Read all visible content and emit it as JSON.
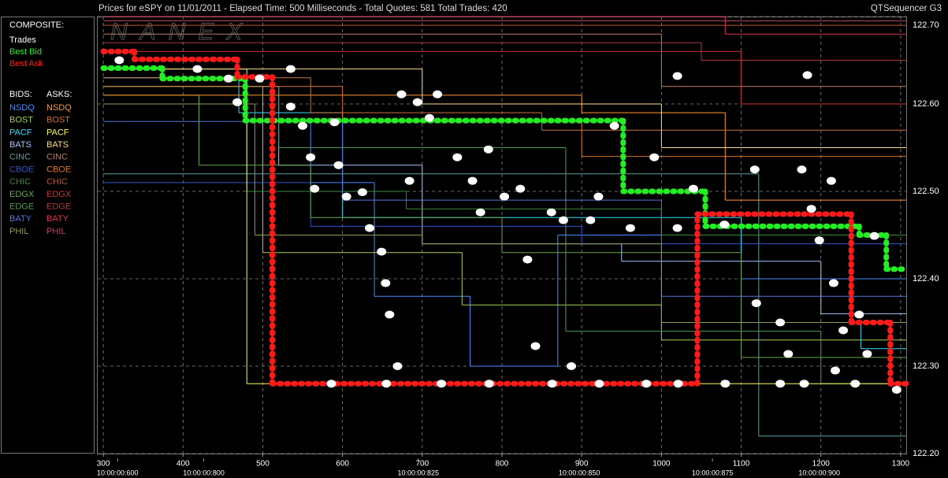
{
  "chart_data": {
    "type": "line",
    "title": "Prices for  eSPY  on  11/01/2011  -  Elapsed Time: 500 Milliseconds  -  Total Quotes: 581  Total Trades: 420",
    "source_label": "QTSequencer G3",
    "watermark": "NANEX",
    "composite_label": "COMPOSITE:",
    "bids_label": "BIDS:",
    "asks_label": "ASKS:",
    "trades": {
      "name": "Trades",
      "color": "#ffffff",
      "x": [
        320,
        418,
        457,
        468,
        496,
        535,
        535,
        550,
        560,
        565,
        590,
        595,
        605,
        625,
        634,
        649,
        654,
        659,
        669,
        674,
        694,
        684,
        709,
        719,
        744,
        763,
        773,
        783,
        803,
        823,
        832,
        842,
        862,
        877,
        887,
        911,
        921,
        941,
        961,
        991,
        1020,
        1020,
        1040,
        1079,
        1117,
        1119,
        1149,
        1159,
        1176,
        1183,
        1188,
        1198,
        1213,
        1216,
        1218,
        1228,
        1248,
        1258,
        1267,
        1295,
        586,
        655,
        724,
        784,
        863,
        922,
        981,
        1021,
        1080,
        1149,
        1179,
        1243
      ],
      "values": [
        122.65,
        122.64,
        122.629,
        122.602,
        122.629,
        122.64,
        122.597,
        122.575,
        122.539,
        122.503,
        122.579,
        122.53,
        122.494,
        122.499,
        122.458,
        122.431,
        122.395,
        122.359,
        122.3,
        122.611,
        122.602,
        122.512,
        122.584,
        122.611,
        122.539,
        122.512,
        122.476,
        122.548,
        122.494,
        122.503,
        122.422,
        122.323,
        122.476,
        122.467,
        122.3,
        122.467,
        122.494,
        122.575,
        122.458,
        122.539,
        122.632,
        122.458,
        122.503,
        122.462,
        122.525,
        122.372,
        122.35,
        122.314,
        122.525,
        122.633,
        122.48,
        122.444,
        122.512,
        122.395,
        122.295,
        122.341,
        122.359,
        122.314,
        122.449,
        122.273,
        122.28,
        122.28,
        122.28,
        122.28,
        122.28,
        122.28,
        122.28,
        122.28,
        122.28,
        122.28,
        122.28,
        122.28
      ]
    },
    "best_bid": {
      "name": "Best Bid",
      "color": "#22ee22",
      "x": [
        300,
        374,
        478,
        952,
        1055,
        1248,
        1282
      ],
      "values": [
        122.641,
        122.629,
        122.581,
        122.5,
        122.46,
        122.45,
        122.411
      ]
    },
    "best_ask": {
      "name": "Best Ask",
      "color": "#ff1a1a",
      "x": [
        300,
        339,
        468,
        512,
        1045,
        1238,
        1287
      ],
      "values": [
        122.66,
        122.651,
        122.631,
        122.28,
        122.474,
        122.35,
        122.28
      ]
    },
    "bids": [
      {
        "name": "NSDQ",
        "color": "#4a8cff",
        "x": [
          300,
          480,
          560,
          640,
          760,
          870,
          1100
        ],
        "values": [
          122.63,
          122.58,
          122.51,
          122.38,
          122.3,
          122.45,
          122.4
        ]
      },
      {
        "name": "BOST",
        "color": "#a8d050",
        "x": [
          300,
          500,
          750,
          1000
        ],
        "values": [
          122.62,
          122.43,
          122.37,
          122.33
        ]
      },
      {
        "name": "PACF",
        "color": "#33e0ff",
        "x": [
          300,
          470,
          600,
          1100,
          1250
        ],
        "values": [
          122.63,
          122.59,
          122.47,
          122.35,
          122.32
        ]
      },
      {
        "name": "BATS",
        "color": "#a8c8ff",
        "x": [
          300,
          520,
          700,
          950,
          1200
        ],
        "values": [
          122.62,
          122.53,
          122.44,
          122.42,
          122.36
        ]
      },
      {
        "name": "CINC",
        "color": "#5f9ea0",
        "x": [
          300,
          1122
        ],
        "values": [
          122.52,
          122.22
        ]
      },
      {
        "name": "CBOE",
        "color": "#3355cc",
        "x": [
          300,
          560,
          900
        ],
        "values": [
          122.51,
          122.46,
          122.44
        ]
      },
      {
        "name": "CHIC",
        "color": "#3c8c3c",
        "x": [
          300,
          480,
          680,
          1000
        ],
        "values": [
          122.6,
          122.5,
          122.48,
          122.45
        ]
      },
      {
        "name": "EDGX",
        "color": "#6aa84f",
        "x": [
          300,
          420,
          560,
          800,
          1100
        ],
        "values": [
          122.61,
          122.53,
          122.47,
          122.43,
          122.31
        ]
      },
      {
        "name": "EDGE",
        "color": "#4f9a4f",
        "x": [
          300,
          520,
          880,
          1200
        ],
        "values": [
          122.62,
          122.55,
          122.34,
          122.28
        ]
      },
      {
        "name": "BATY",
        "color": "#5577dd",
        "x": [
          300,
          600,
          1000
        ],
        "values": [
          122.58,
          122.49,
          122.38
        ]
      },
      {
        "name": "PHIL",
        "color": "#8aa050",
        "x": [
          300,
          490,
          700,
          1000
        ],
        "values": [
          122.6,
          122.45,
          122.44,
          122.35
        ]
      }
    ],
    "asks": [
      {
        "name": "NSDQ",
        "color": "#ff9933",
        "x": [
          300,
          640,
          900,
          1080
        ],
        "values": [
          122.61,
          122.61,
          122.59,
          122.49
        ]
      },
      {
        "name": "BOST",
        "color": "#d0703a",
        "x": [
          300,
          560,
          850
        ],
        "values": [
          122.63,
          122.59,
          122.57
        ]
      },
      {
        "name": "PACF",
        "color": "#ffff55",
        "x": [
          300,
          480
        ],
        "values": [
          122.64,
          122.28
        ]
      },
      {
        "name": "BATS",
        "color": "#ffdd88",
        "x": [
          300,
          700,
          1000
        ],
        "values": [
          122.64,
          122.6,
          122.55
        ]
      },
      {
        "name": "CINC",
        "color": "#b88060",
        "x": [
          300,
          1000
        ],
        "values": [
          122.68,
          122.62
        ]
      },
      {
        "name": "CBOE",
        "color": "#dd7722",
        "x": [
          300,
          600,
          900
        ],
        "values": [
          122.62,
          122.58,
          122.54
        ]
      },
      {
        "name": "CHIC",
        "color": "#bb5533",
        "x": [
          300
        ],
        "values": [
          122.69
        ]
      },
      {
        "name": "EDGX",
        "color": "#cc3333",
        "x": [
          300,
          900,
          1100
        ],
        "values": [
          122.66,
          122.66,
          122.6
        ]
      },
      {
        "name": "EDGE",
        "color": "#aa3a3a",
        "x": [
          300,
          1050
        ],
        "values": [
          122.67,
          122.65
        ]
      },
      {
        "name": "BATY",
        "color": "#dd3355",
        "x": [
          300,
          1080
        ],
        "values": [
          122.7,
          122.68
        ]
      },
      {
        "name": "PHIL",
        "color": "#bb4466",
        "x": [
          300
        ],
        "values": [
          122.695
        ]
      }
    ],
    "xlim": [
      293,
      1307
    ],
    "ylim": [
      122.2,
      122.7
    ],
    "xticks": [
      300,
      400,
      500,
      600,
      700,
      800,
      900,
      1000,
      1100,
      1200,
      1300
    ],
    "yticks": [
      {
        "value": 122.2,
        "label": "122.20"
      },
      {
        "value": 122.3,
        "label": "122.30"
      },
      {
        "value": 122.4,
        "label": "122.40"
      },
      {
        "value": 122.5,
        "label": "122.50"
      },
      {
        "value": 122.6,
        "label": "122.60"
      },
      {
        "value": 122.7,
        "label": "122.70"
      }
    ],
    "x2ticks": [
      {
        "value": 318,
        "label": "10:00:00:600"
      },
      {
        "value": 426,
        "label": "10:00:00:800"
      },
      {
        "value": 695,
        "label": "10:00:00:825"
      },
      {
        "value": 897,
        "label": "10:00:00:850"
      },
      {
        "value": 1064,
        "label": "10:00:00:875"
      },
      {
        "value": 1198,
        "label": "10:00:00:900"
      }
    ],
    "grid": true
  }
}
